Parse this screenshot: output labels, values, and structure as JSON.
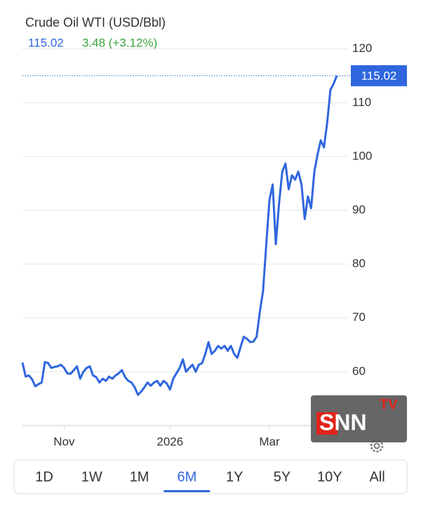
{
  "chart_data": {
    "type": "line",
    "title": "Crude Oil WTI (USD/Bbl)",
    "price_label": "115.02",
    "change_label": "3.48 (+3.12%)",
    "color": "#2f66de",
    "values": [
      61.7,
      59.1,
      59.3,
      58.6,
      57.3,
      57.7,
      58.0,
      61.8,
      61.6,
      60.7,
      60.9,
      61.0,
      61.3,
      60.7,
      59.7,
      59.6,
      60.3,
      61.0,
      58.7,
      60.0,
      60.7,
      61.0,
      59.3,
      59.0,
      58.0,
      58.7,
      58.3,
      59.1,
      58.7,
      59.3,
      59.7,
      60.3,
      59.0,
      58.3,
      58.0,
      57.1,
      55.7,
      56.3,
      57.1,
      58.0,
      57.4,
      58.0,
      58.3,
      57.4,
      58.3,
      57.8,
      56.7,
      58.7,
      59.7,
      60.7,
      62.3,
      60.0,
      60.7,
      61.3,
      60.0,
      61.3,
      61.6,
      63.3,
      65.5,
      63.3,
      63.9,
      64.8,
      64.3,
      64.8,
      63.9,
      64.8,
      63.3,
      62.6,
      64.6,
      66.5,
      66.1,
      65.5,
      65.6,
      66.5,
      71.1,
      75.0,
      83.5,
      91.9,
      94.8,
      83.7,
      91.3,
      97.2,
      98.7,
      93.9,
      96.5,
      95.7,
      97.2,
      94.8,
      88.4,
      92.6,
      90.4,
      97.2,
      100.4,
      103.0,
      101.7,
      106.3,
      112.4,
      113.5,
      115.02
    ],
    "xlim": [
      0,
      98
    ],
    "xticks": [
      {
        "value": 13,
        "label": "Nov"
      },
      {
        "value": 46,
        "label": "2026"
      },
      {
        "value": 77,
        "label": "Mar"
      }
    ],
    "ylim": [
      50,
      122.5
    ],
    "yticks": [
      60,
      70,
      80,
      90,
      100,
      110,
      120
    ],
    "grid": true
  },
  "range_selector": {
    "options": [
      "1D",
      "1W",
      "1M",
      "6M",
      "1Y",
      "5Y",
      "10Y",
      "All"
    ],
    "selected": 3
  },
  "watermark": {
    "logo": "SNN",
    "badge": "TV"
  }
}
